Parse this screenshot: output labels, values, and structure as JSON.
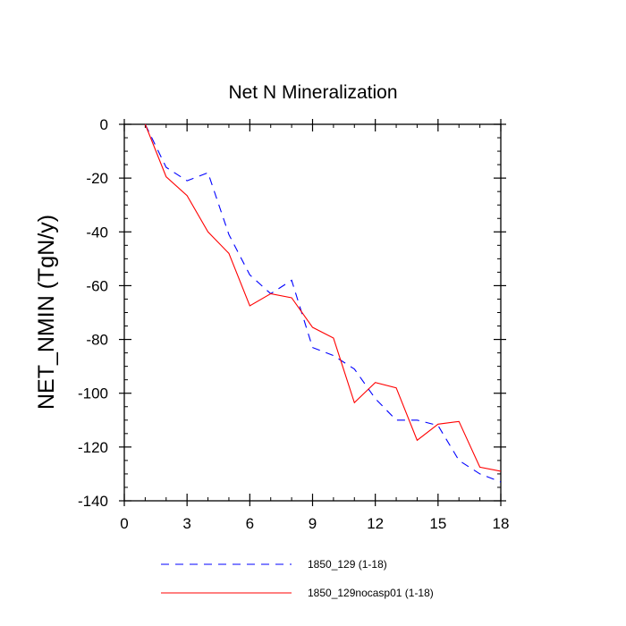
{
  "chart_data": {
    "type": "line",
    "title": "Net N Mineralization",
    "xlabel": "",
    "ylabel": "NET_NMIN  (TgN/y)",
    "xlim": [
      0,
      18
    ],
    "ylim": [
      -140,
      0
    ],
    "xticks": [
      0,
      3,
      6,
      9,
      12,
      15,
      18
    ],
    "yticks": [
      0,
      -20,
      -40,
      -60,
      -80,
      -100,
      -120,
      -140
    ],
    "x": [
      1,
      2,
      3,
      4,
      5,
      6,
      7,
      8,
      9,
      10,
      11,
      12,
      13,
      14,
      15,
      16,
      17,
      18
    ],
    "series": [
      {
        "name": "1850_129 (1-18)",
        "color": "#0000ff",
        "dash": "dashed",
        "values": [
          0,
          -16,
          -21,
          -18,
          -41,
          -56,
          -63,
          -58,
          -83,
          -86,
          -91,
          -102,
          -110,
          -110,
          -112,
          -125,
          -130,
          -133
        ]
      },
      {
        "name": "1850_129nocasp01 (1-18)",
        "color": "#ff0000",
        "dash": "solid",
        "values": [
          0,
          -19.5,
          -26.5,
          -40,
          -48,
          -67.5,
          -63,
          -64.5,
          -75.5,
          -79.5,
          -103.5,
          -96,
          -98,
          -117.5,
          -111.5,
          -110.5,
          -127.5,
          -129
        ]
      }
    ],
    "grid": false,
    "legend_position": "bottom"
  }
}
